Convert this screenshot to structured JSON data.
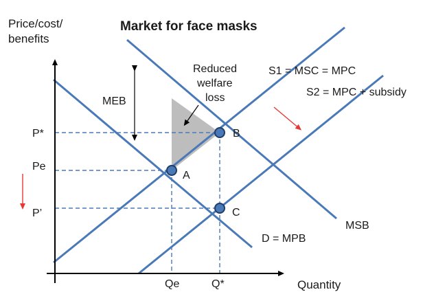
{
  "title": "Market for face masks",
  "y_axis_label_line1": "Price/cost/",
  "y_axis_label_line2": "benefits",
  "x_axis_label": "Quantity",
  "curves": {
    "s1": "S1 = MSC = MPC",
    "s2": "S2 = MPC + subsidy",
    "msb": "MSB",
    "d": "D = MPB"
  },
  "prices": {
    "p_star": "P*",
    "p_e": "Pe",
    "p_prime": "P’"
  },
  "quantities": {
    "q_e": "Qe",
    "q_star": "Q*"
  },
  "points": {
    "a": "A",
    "b": "B",
    "c": "C"
  },
  "annotations": {
    "meb": "MEB",
    "welfare_line1": "Reduced",
    "welfare_line2": "welfare",
    "welfare_line3": "loss"
  },
  "colors": {
    "curve": "#4a79b8",
    "welfare_area": "#bdbdbd",
    "arrow": "#e53935"
  }
}
